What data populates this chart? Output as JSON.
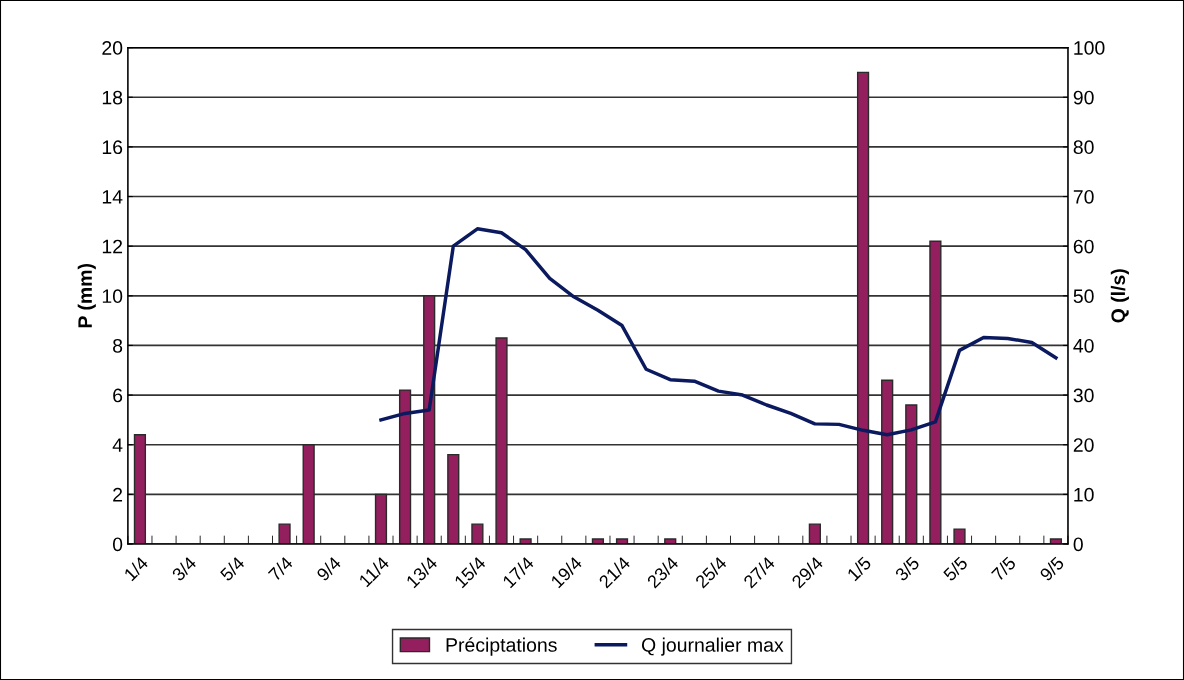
{
  "chart_data": {
    "type": "bar",
    "categories": [
      "1/4",
      null,
      "3/4",
      null,
      "5/4",
      null,
      "7/4",
      null,
      "9/4",
      null,
      "11/4",
      null,
      "13/4",
      null,
      "15/4",
      null,
      "17/4",
      null,
      "19/4",
      null,
      "21/4",
      null,
      "23/4",
      null,
      "25/4",
      null,
      "27/4",
      null,
      "29/4",
      null,
      "1/5",
      null,
      "3/5",
      null,
      "5/5",
      null,
      "7/5",
      null,
      "9/5"
    ],
    "series": [
      {
        "name": "Préciptations",
        "color": "#941f5e",
        "values": [
          4.4,
          null,
          null,
          null,
          null,
          null,
          0.8,
          4.0,
          null,
          null,
          2.0,
          6.2,
          10.0,
          3.6,
          0.8,
          8.3,
          0.2,
          null,
          null,
          0.2,
          0.2,
          null,
          0.2,
          null,
          null,
          null,
          null,
          null,
          0.8,
          null,
          19.0,
          6.6,
          5.6,
          12.2,
          0.6,
          null,
          null,
          null,
          0.2
        ]
      },
      {
        "name": "Q journalier max",
        "type": "line",
        "axis": "y2",
        "color": "#0b1a5e",
        "values": [
          null,
          null,
          null,
          null,
          null,
          null,
          null,
          null,
          null,
          null,
          25.0,
          26.3,
          27.0,
          60.0,
          63.5,
          62.7,
          59.3,
          53.5,
          49.8,
          47.1,
          44.0,
          35.2,
          33.1,
          32.8,
          30.8,
          30.0,
          28.0,
          26.3,
          24.2,
          24.1,
          22.9,
          22.0,
          23.0,
          24.6,
          39.0,
          41.6,
          41.4,
          40.6,
          37.5
        ]
      }
    ],
    "ylabel": "P (mm)",
    "y2label": "Q (l/s)",
    "ylim": [
      0,
      20
    ],
    "yticks": [
      0,
      2,
      4,
      6,
      8,
      10,
      12,
      14,
      16,
      18,
      20
    ],
    "y2lim": [
      0,
      100
    ],
    "y2ticks": [
      0,
      10,
      20,
      30,
      40,
      50,
      60,
      70,
      80,
      90,
      100
    ],
    "grid": "y",
    "legend": "bottom"
  }
}
